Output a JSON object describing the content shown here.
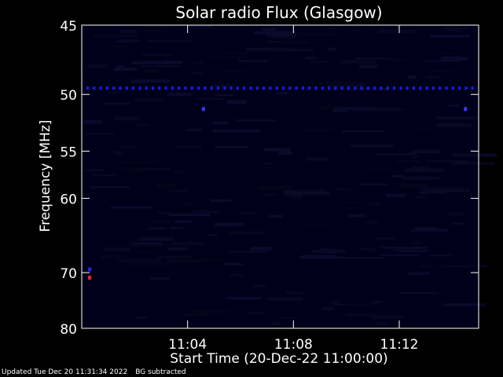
{
  "chart_data": {
    "type": "heatmap",
    "title": "Solar radio Flux (Glasgow)",
    "ylabel": "Frequency [MHz]",
    "xlabel": "Start Time (20-Dec-22 11:00:00)",
    "xlim_minutes": [
      0,
      15
    ],
    "ylim": [
      45,
      80
    ],
    "x_ticks": [
      {
        "minutes": 4,
        "label": "11:04"
      },
      {
        "minutes": 8,
        "label": "11:08"
      },
      {
        "minutes": 12,
        "label": "11:12"
      }
    ],
    "y_ticks": [
      {
        "value": 45,
        "label": "45"
      },
      {
        "value": 50,
        "label": "50"
      },
      {
        "value": 55,
        "label": "55"
      },
      {
        "value": 60,
        "label": "60"
      },
      {
        "value": 70,
        "label": "70"
      },
      {
        "value": 80,
        "label": "80"
      }
    ],
    "y_scale": "reciprocal",
    "background_color": "#00001a",
    "interference_band": {
      "frequency": 49.5,
      "color": "#1b1bff"
    },
    "hot_spots": [
      {
        "minutes": 4.6,
        "frequency": 51.2,
        "color": "#3535ff"
      },
      {
        "minutes": 14.5,
        "frequency": 51.2,
        "color": "#3535ff"
      },
      {
        "minutes": 0.3,
        "frequency": 70.8,
        "color": "#ff2020"
      },
      {
        "minutes": 0.3,
        "frequency": 69.5,
        "color": "#2424ff"
      }
    ]
  },
  "footer": {
    "updated": "Updated Tue Dec 20 11:31:34 2022",
    "note": "BG subtracted"
  }
}
